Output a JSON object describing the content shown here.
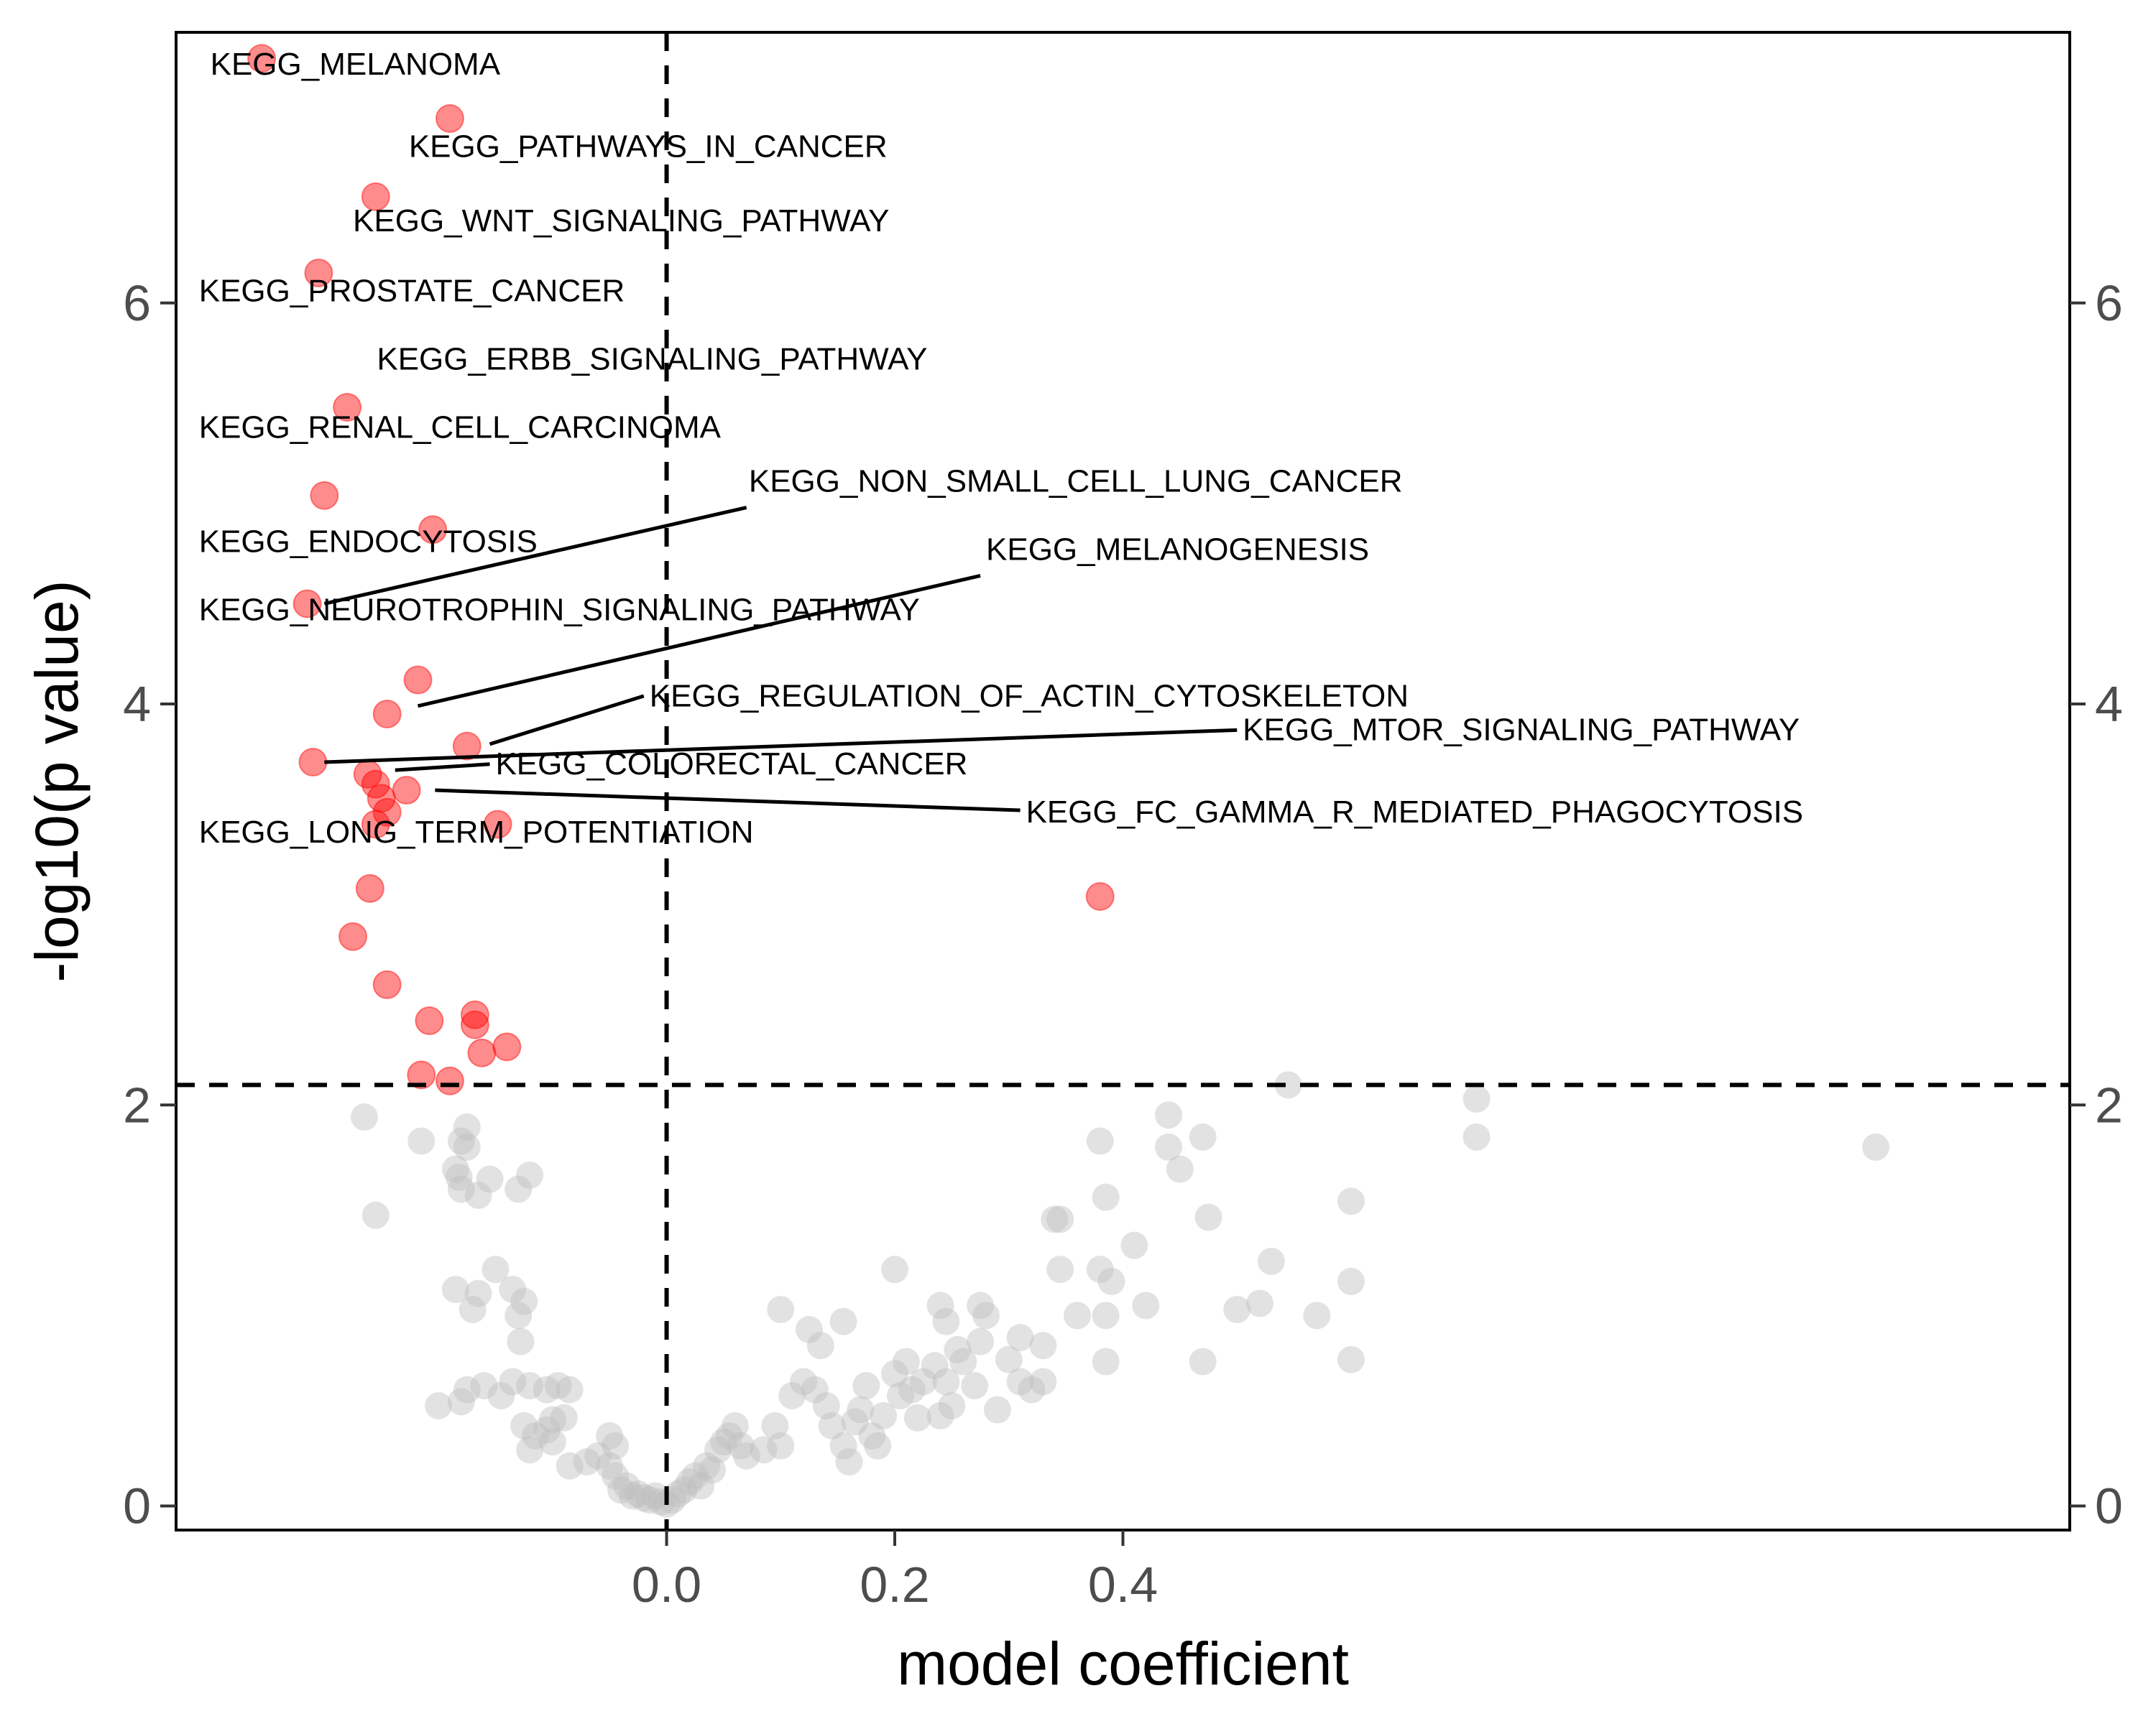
{
  "chart_data": {
    "type": "scatter",
    "title": "",
    "xlabel": "model coefficient",
    "ylabel": "-log10(p value)",
    "xlim": [
      -0.43,
      1.23
    ],
    "ylim": [
      -0.12,
      7.35
    ],
    "xticks": [
      0.0,
      0.2,
      0.4
    ],
    "xtick_labels": [
      "0.0",
      "0.2",
      "0.4"
    ],
    "yticks": [
      0,
      2,
      4,
      6
    ],
    "ytick_labels": [
      "0",
      "2",
      "4",
      "6"
    ],
    "secondary_y_axis": true,
    "grid": false,
    "threshold_lines": {
      "vertical_x": 0,
      "horizontal_y": 2.1
    },
    "colors": {
      "significant": "#ff0000",
      "not_significant": "#bebebe",
      "point_alpha": 0.45
    },
    "significant_points": [
      {
        "x": -0.355,
        "y": 7.22
      },
      {
        "x": -0.19,
        "y": 6.92
      },
      {
        "x": -0.255,
        "y": 6.53
      },
      {
        "x": -0.305,
        "y": 6.15
      },
      {
        "x": -0.28,
        "y": 5.48
      },
      {
        "x": -0.3,
        "y": 5.04
      },
      {
        "x": -0.205,
        "y": 4.87
      },
      {
        "x": -0.315,
        "y": 4.5
      },
      {
        "x": -0.218,
        "y": 4.12
      },
      {
        "x": -0.245,
        "y": 3.95
      },
      {
        "x": -0.175,
        "y": 3.79
      },
      {
        "x": -0.31,
        "y": 3.71
      },
      {
        "x": -0.262,
        "y": 3.65
      },
      {
        "x": -0.255,
        "y": 3.6
      },
      {
        "x": -0.25,
        "y": 3.53
      },
      {
        "x": -0.228,
        "y": 3.57
      },
      {
        "x": -0.245,
        "y": 3.46
      },
      {
        "x": -0.255,
        "y": 3.4
      },
      {
        "x": -0.148,
        "y": 3.4
      },
      {
        "x": -0.26,
        "y": 3.08
      },
      {
        "x": -0.275,
        "y": 2.84
      },
      {
        "x": -0.245,
        "y": 2.6
      },
      {
        "x": -0.208,
        "y": 2.42
      },
      {
        "x": -0.168,
        "y": 2.45
      },
      {
        "x": -0.168,
        "y": 2.4
      },
      {
        "x": -0.162,
        "y": 2.26
      },
      {
        "x": -0.14,
        "y": 2.29
      },
      {
        "x": -0.215,
        "y": 2.15
      },
      {
        "x": -0.19,
        "y": 2.12
      },
      {
        "x": 0.38,
        "y": 3.04
      }
    ],
    "labels": [
      {
        "text": "KEGG_MELANOMA",
        "x": -0.4,
        "y": 7.18,
        "anchor": "start"
      },
      {
        "text": "KEGG_PATHWAYS_IN_CANCER",
        "x": -0.226,
        "y": 6.77,
        "anchor": "start"
      },
      {
        "text": "KEGG_WNT_SIGNALING_PATHWAY",
        "x": -0.275,
        "y": 6.4,
        "anchor": "start"
      },
      {
        "text": "KEGG_PROSTATE_CANCER",
        "x": -0.41,
        "y": 6.05,
        "anchor": "start"
      },
      {
        "text": "KEGG_ERBB_SIGNALING_PATHWAY",
        "x": -0.254,
        "y": 5.71,
        "anchor": "start"
      },
      {
        "text": "KEGG_RENAL_CELL_CARCINOMA",
        "x": -0.41,
        "y": 5.37,
        "anchor": "start"
      },
      {
        "text": "KEGG_NON_SMALL_CELL_LUNG_CANCER",
        "x": 0.072,
        "y": 5.1,
        "anchor": "start",
        "leader": [
          -0.3,
          4.5,
          0.07,
          4.98
        ]
      },
      {
        "text": "KEGG_ENDOCYTOSIS",
        "x": -0.41,
        "y": 4.8,
        "anchor": "start"
      },
      {
        "text": "KEGG_MELANOGENESIS",
        "x": 0.28,
        "y": 4.76,
        "anchor": "start",
        "leader": [
          -0.218,
          3.99,
          0.275,
          4.64
        ]
      },
      {
        "text": "KEGG_NEUROTROPHIN_SIGNALING_PATHWAY",
        "x": -0.41,
        "y": 4.46,
        "anchor": "start"
      },
      {
        "text": "KEGG_REGULATION_OF_ACTIN_CYTOSKELETON",
        "x": -0.015,
        "y": 4.03,
        "anchor": "start",
        "leader": [
          -0.155,
          3.8,
          -0.02,
          4.04
        ]
      },
      {
        "text": "KEGG_MTOR_SIGNALING_PATHWAY",
        "x": 0.505,
        "y": 3.86,
        "anchor": "start",
        "leader": [
          -0.3,
          3.71,
          0.5,
          3.87
        ]
      },
      {
        "text": "KEGG_COLORECTAL_CANCER",
        "x": -0.15,
        "y": 3.69,
        "anchor": "start",
        "leader": [
          -0.238,
          3.67,
          -0.155,
          3.7
        ]
      },
      {
        "text": "KEGG_FC_GAMMA_R_MEDIATED_PHAGOCYTOSIS",
        "x": 0.315,
        "y": 3.45,
        "anchor": "start",
        "leader": [
          -0.203,
          3.57,
          0.31,
          3.47
        ]
      },
      {
        "text": "KEGG_LONG_TERM_POTENTIATION",
        "x": -0.41,
        "y": 3.35,
        "anchor": "start"
      }
    ],
    "nonsignificant_points": [
      {
        "x": -0.265,
        "y": 1.94
      },
      {
        "x": -0.255,
        "y": 1.45
      },
      {
        "x": -0.215,
        "y": 1.82
      },
      {
        "x": -0.175,
        "y": 1.89
      },
      {
        "x": -0.18,
        "y": 1.82
      },
      {
        "x": -0.185,
        "y": 1.68
      },
      {
        "x": -0.175,
        "y": 1.79
      },
      {
        "x": -0.182,
        "y": 1.64
      },
      {
        "x": -0.18,
        "y": 1.58
      },
      {
        "x": -0.165,
        "y": 1.55
      },
      {
        "x": -0.155,
        "y": 1.63
      },
      {
        "x": -0.13,
        "y": 1.58
      },
      {
        "x": -0.12,
        "y": 1.65
      },
      {
        "x": -0.15,
        "y": 1.18
      },
      {
        "x": -0.165,
        "y": 1.06
      },
      {
        "x": -0.17,
        "y": 0.98
      },
      {
        "x": -0.135,
        "y": 1.08
      },
      {
        "x": -0.125,
        "y": 1.02
      },
      {
        "x": -0.13,
        "y": 0.95
      },
      {
        "x": -0.185,
        "y": 1.08
      },
      {
        "x": -0.128,
        "y": 0.82
      },
      {
        "x": -0.16,
        "y": 0.6
      },
      {
        "x": -0.145,
        "y": 0.55
      },
      {
        "x": -0.135,
        "y": 0.62
      },
      {
        "x": -0.12,
        "y": 0.6
      },
      {
        "x": -0.105,
        "y": 0.58
      },
      {
        "x": -0.095,
        "y": 0.6
      },
      {
        "x": -0.085,
        "y": 0.58
      },
      {
        "x": -0.175,
        "y": 0.58
      },
      {
        "x": -0.2,
        "y": 0.5
      },
      {
        "x": -0.18,
        "y": 0.52
      },
      {
        "x": -0.125,
        "y": 0.4
      },
      {
        "x": -0.115,
        "y": 0.35
      },
      {
        "x": -0.105,
        "y": 0.38
      },
      {
        "x": -0.1,
        "y": 0.43
      },
      {
        "x": -0.09,
        "y": 0.44
      },
      {
        "x": -0.12,
        "y": 0.28
      },
      {
        "x": -0.1,
        "y": 0.32
      },
      {
        "x": -0.085,
        "y": 0.2
      },
      {
        "x": -0.07,
        "y": 0.22
      },
      {
        "x": -0.06,
        "y": 0.25
      },
      {
        "x": -0.05,
        "y": 0.2
      },
      {
        "x": -0.045,
        "y": 0.15
      },
      {
        "x": -0.04,
        "y": 0.08
      },
      {
        "x": -0.035,
        "y": 0.1
      },
      {
        "x": -0.03,
        "y": 0.05
      },
      {
        "x": -0.025,
        "y": 0.06
      },
      {
        "x": -0.02,
        "y": 0.04
      },
      {
        "x": -0.015,
        "y": 0.03
      },
      {
        "x": -0.01,
        "y": 0.05
      },
      {
        "x": -0.005,
        "y": 0.02
      },
      {
        "x": 0.0,
        "y": 0.01
      },
      {
        "x": 0.005,
        "y": 0.03
      },
      {
        "x": 0.01,
        "y": 0.06
      },
      {
        "x": 0.015,
        "y": 0.08
      },
      {
        "x": 0.02,
        "y": 0.12
      },
      {
        "x": 0.025,
        "y": 0.15
      },
      {
        "x": 0.03,
        "y": 0.1
      },
      {
        "x": 0.035,
        "y": 0.2
      },
      {
        "x": 0.04,
        "y": 0.18
      },
      {
        "x": -0.05,
        "y": 0.35
      },
      {
        "x": -0.045,
        "y": 0.3
      },
      {
        "x": 0.045,
        "y": 0.28
      },
      {
        "x": 0.05,
        "y": 0.32
      },
      {
        "x": 0.055,
        "y": 0.35
      },
      {
        "x": 0.06,
        "y": 0.4
      },
      {
        "x": 0.065,
        "y": 0.3
      },
      {
        "x": 0.07,
        "y": 0.25
      },
      {
        "x": 0.085,
        "y": 0.28
      },
      {
        "x": 0.095,
        "y": 0.4
      },
      {
        "x": 0.1,
        "y": 0.3
      },
      {
        "x": 0.11,
        "y": 0.55
      },
      {
        "x": 0.12,
        "y": 0.62
      },
      {
        "x": 0.13,
        "y": 0.58
      },
      {
        "x": 0.135,
        "y": 0.8
      },
      {
        "x": 0.14,
        "y": 0.5
      },
      {
        "x": 0.145,
        "y": 0.4
      },
      {
        "x": 0.155,
        "y": 0.3
      },
      {
        "x": 0.16,
        "y": 0.22
      },
      {
        "x": 0.165,
        "y": 0.42
      },
      {
        "x": 0.17,
        "y": 0.48
      },
      {
        "x": 0.175,
        "y": 0.6
      },
      {
        "x": 0.18,
        "y": 0.35
      },
      {
        "x": 0.185,
        "y": 0.3
      },
      {
        "x": 0.19,
        "y": 0.45
      },
      {
        "x": 0.2,
        "y": 0.66
      },
      {
        "x": 0.205,
        "y": 0.55
      },
      {
        "x": 0.21,
        "y": 0.72
      },
      {
        "x": 0.215,
        "y": 0.58
      },
      {
        "x": 0.22,
        "y": 0.44
      },
      {
        "x": 0.225,
        "y": 0.62
      },
      {
        "x": 0.235,
        "y": 0.7
      },
      {
        "x": 0.24,
        "y": 0.45
      },
      {
        "x": 0.245,
        "y": 0.62
      },
      {
        "x": 0.25,
        "y": 0.5
      },
      {
        "x": 0.255,
        "y": 0.78
      },
      {
        "x": 0.26,
        "y": 0.72
      },
      {
        "x": 0.27,
        "y": 0.6
      },
      {
        "x": 0.275,
        "y": 0.82
      },
      {
        "x": 0.28,
        "y": 0.95
      },
      {
        "x": 0.29,
        "y": 0.48
      },
      {
        "x": 0.3,
        "y": 0.73
      },
      {
        "x": 0.31,
        "y": 0.62
      },
      {
        "x": 0.32,
        "y": 0.58
      },
      {
        "x": 0.33,
        "y": 0.62
      },
      {
        "x": 0.1,
        "y": 0.98
      },
      {
        "x": 0.125,
        "y": 0.88
      },
      {
        "x": 0.155,
        "y": 0.92
      },
      {
        "x": 0.2,
        "y": 1.18
      },
      {
        "x": 0.24,
        "y": 1.0
      },
      {
        "x": 0.245,
        "y": 0.92
      },
      {
        "x": 0.275,
        "y": 1.0
      },
      {
        "x": 0.31,
        "y": 0.84
      },
      {
        "x": 0.33,
        "y": 0.8
      },
      {
        "x": 0.34,
        "y": 1.43
      },
      {
        "x": 0.345,
        "y": 1.43
      },
      {
        "x": 0.345,
        "y": 1.18
      },
      {
        "x": 0.36,
        "y": 0.95
      },
      {
        "x": 0.38,
        "y": 1.18
      },
      {
        "x": 0.385,
        "y": 0.95
      },
      {
        "x": 0.385,
        "y": 0.72
      },
      {
        "x": 0.385,
        "y": 1.54
      },
      {
        "x": 0.41,
        "y": 1.3
      },
      {
        "x": 0.39,
        "y": 1.12
      },
      {
        "x": 0.42,
        "y": 1.0
      },
      {
        "x": 0.38,
        "y": 1.82
      },
      {
        "x": 0.44,
        "y": 1.95
      },
      {
        "x": 0.44,
        "y": 1.79
      },
      {
        "x": 0.45,
        "y": 1.68
      },
      {
        "x": 0.47,
        "y": 1.84
      },
      {
        "x": 0.475,
        "y": 1.44
      },
      {
        "x": 0.47,
        "y": 0.72
      },
      {
        "x": 0.5,
        "y": 0.98
      },
      {
        "x": 0.52,
        "y": 1.01
      },
      {
        "x": 0.53,
        "y": 1.22
      },
      {
        "x": 0.545,
        "y": 2.1
      },
      {
        "x": 0.57,
        "y": 0.95
      },
      {
        "x": 0.6,
        "y": 1.52
      },
      {
        "x": 0.6,
        "y": 0.73
      },
      {
        "x": 0.6,
        "y": 1.12
      },
      {
        "x": 0.71,
        "y": 2.03
      },
      {
        "x": 0.71,
        "y": 1.84
      },
      {
        "x": 1.06,
        "y": 1.79
      }
    ]
  }
}
